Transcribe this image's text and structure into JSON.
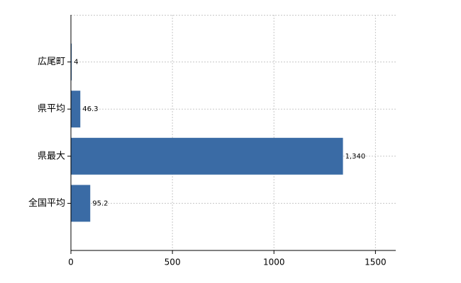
{
  "chart_data": {
    "type": "hbar",
    "categories": [
      "広尾町",
      "県平均",
      "県最大",
      "全国平均"
    ],
    "values": [
      4,
      46.3,
      1340,
      95.2
    ],
    "value_labels": [
      "4",
      "46.3",
      "1,340",
      "95.2"
    ],
    "color": "#3a6ba5",
    "xlim": [
      0,
      1600
    ],
    "xticks": [
      0,
      500,
      1000,
      1500
    ],
    "grid": true
  }
}
